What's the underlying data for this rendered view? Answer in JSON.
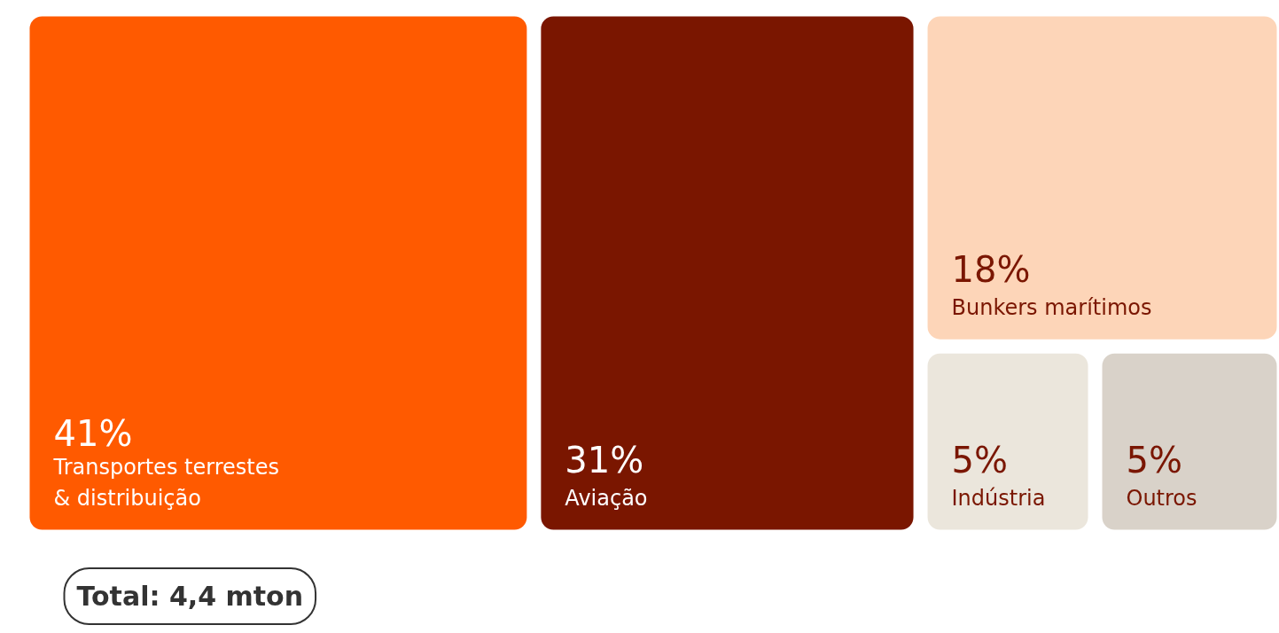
{
  "chart_data": {
    "type": "other",
    "categories": [
      "Transportes terrestes\n& distribuição",
      "Aviação",
      "Bunkers marítimos",
      "Indústria",
      "Outros"
    ],
    "values": [
      41,
      31,
      18,
      5,
      5
    ],
    "value_labels": [
      "41%",
      "31%",
      "18%",
      "5%",
      "5%"
    ],
    "colors": [
      "#ff5a00",
      "#7a1600",
      "#fdd5b8",
      "#ebe6dc",
      "#d9d2c9"
    ],
    "annotations": [
      "Total: 4,4 mton"
    ]
  }
}
